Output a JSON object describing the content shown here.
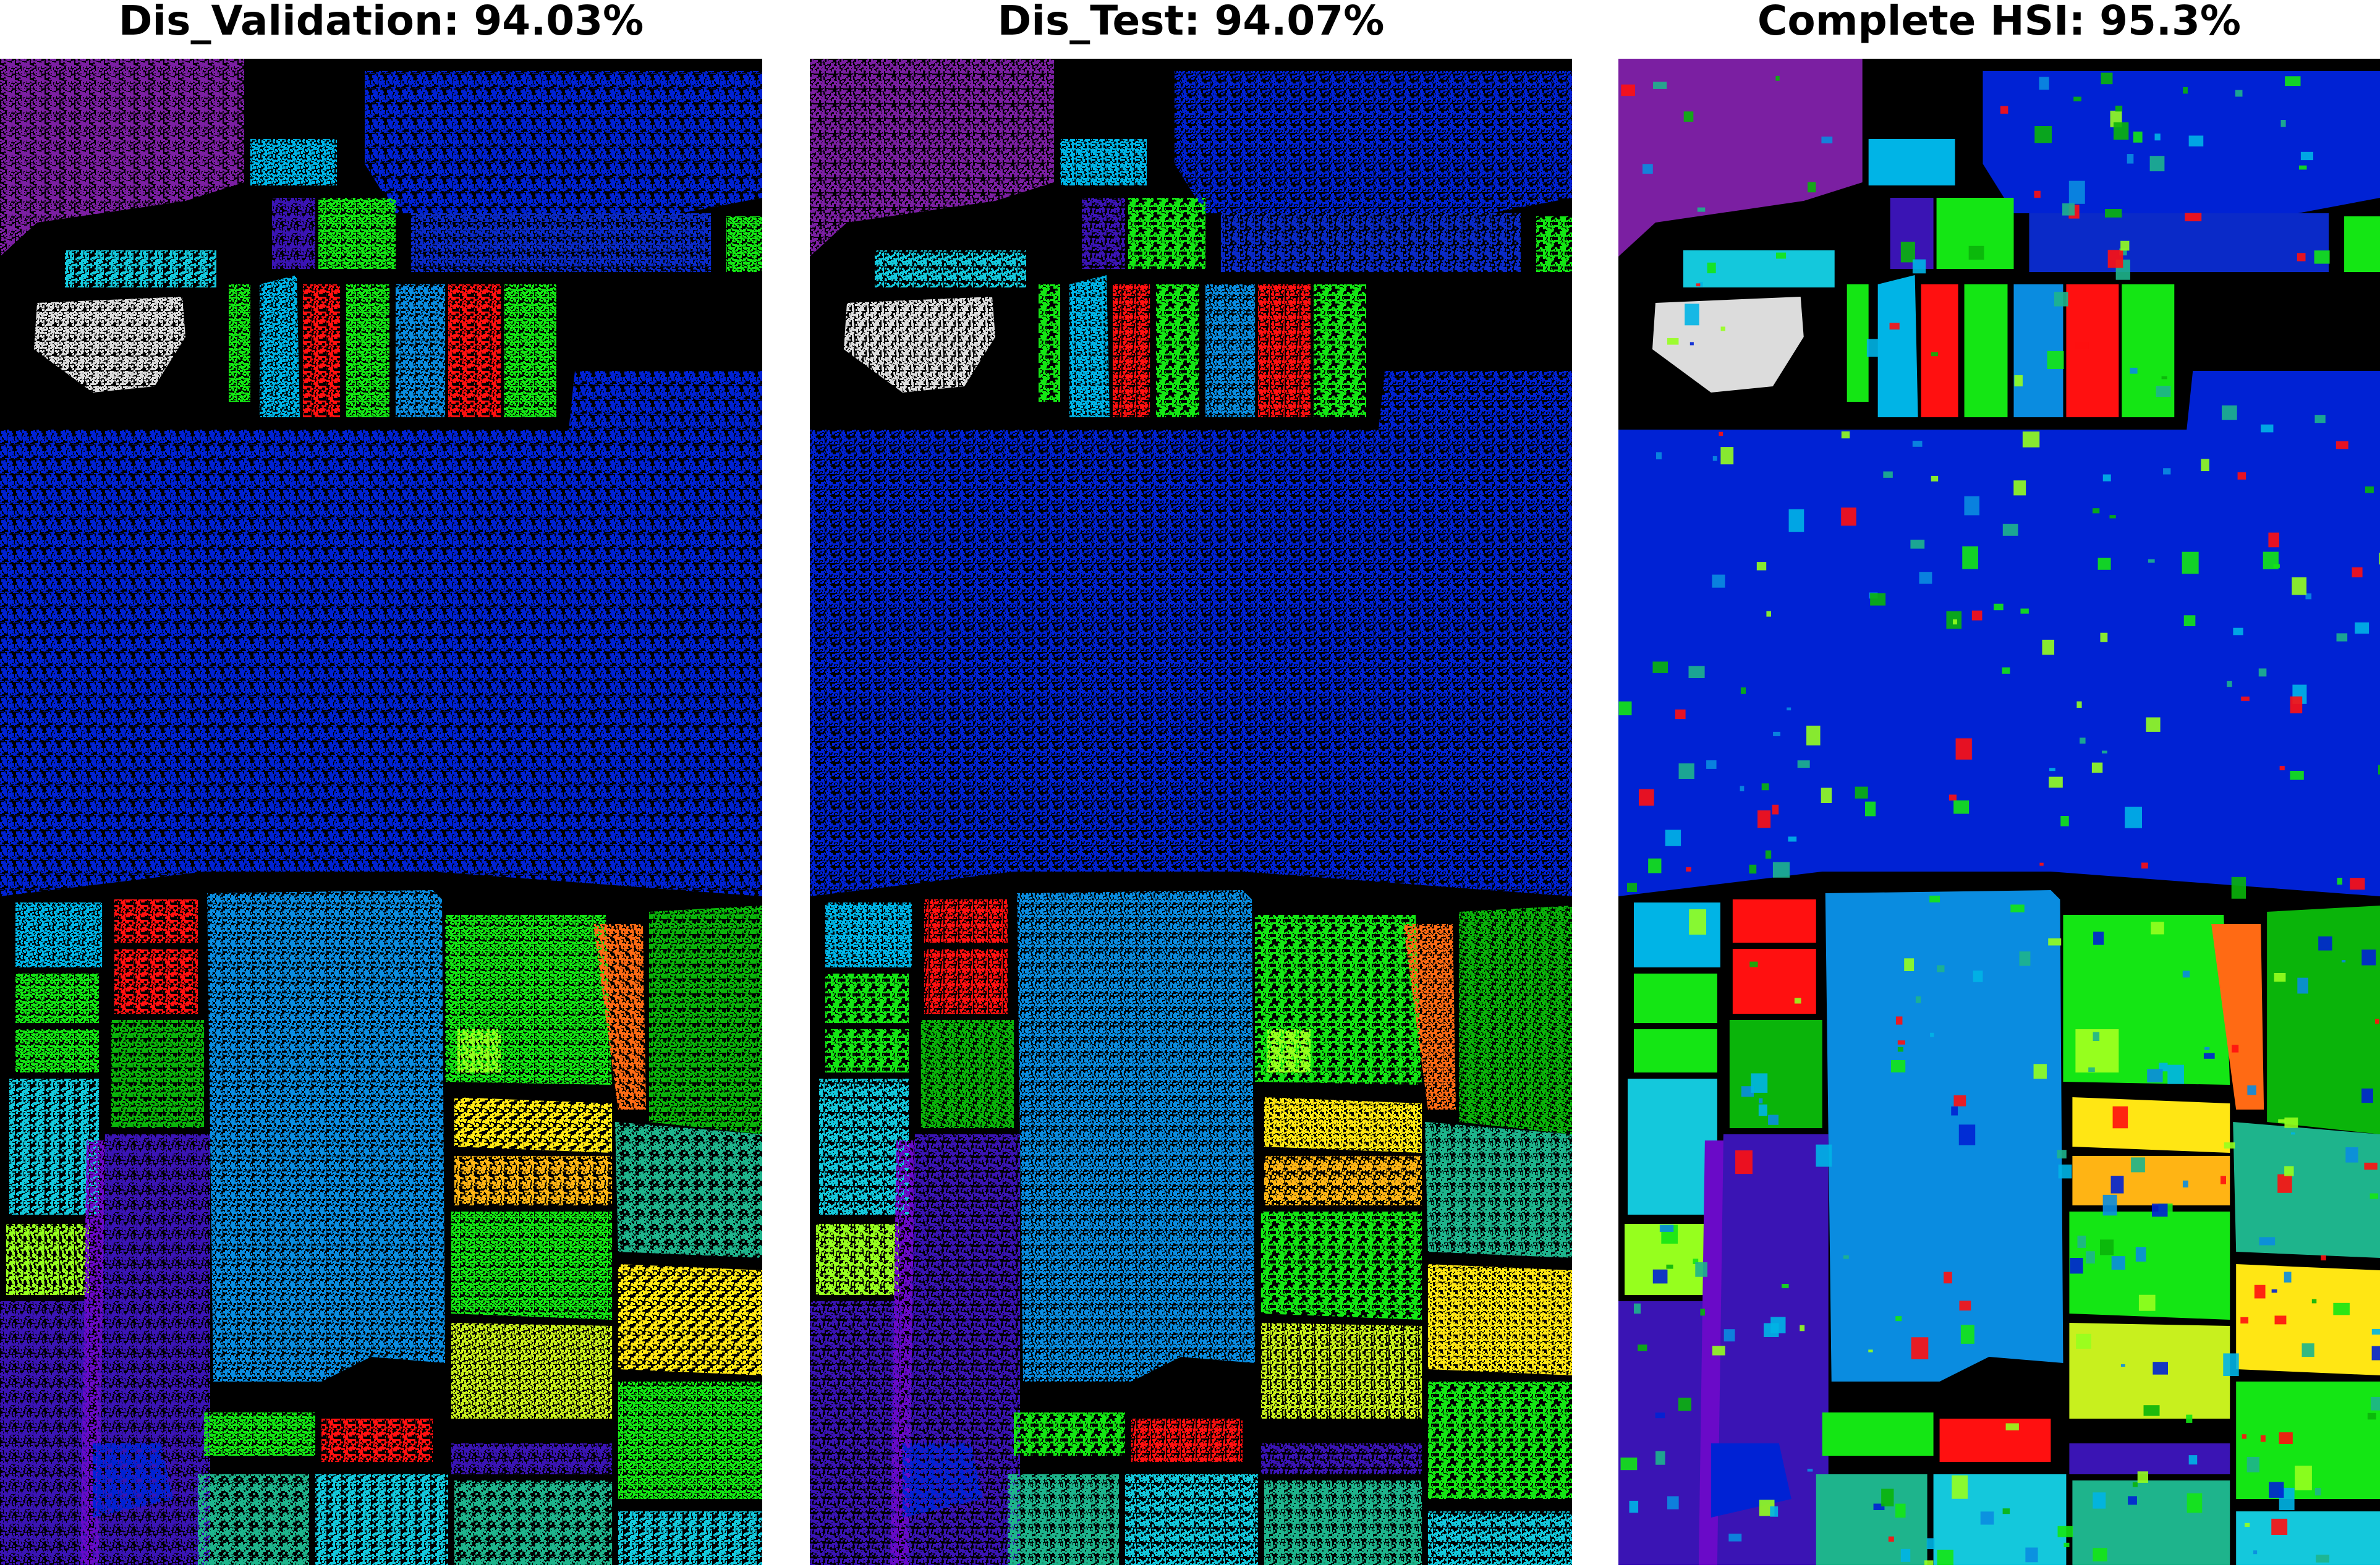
{
  "panels": [
    {
      "title": "Dis_Validation: 94.03%",
      "mode": "sparse"
    },
    {
      "title": "Dis_Test: 94.07%",
      "mode": "sparse"
    },
    {
      "title": "Complete HSI: 95.3%",
      "mode": "full"
    }
  ],
  "colors": {
    "background": "#000000",
    "purple": "#7B1FA2",
    "cyan": "#00B4E6",
    "deep_blue": "#0022D4",
    "navy_blue": "#0A2AC8",
    "sky_blue": "#0A8CE0",
    "blue_gray": "#1E5AE6",
    "white": "#DCDCDC",
    "red": "#FF1010",
    "bright_green": "#14E614",
    "dark_green": "#0AB40A",
    "lime": "#96FF1E",
    "yellow_green": "#C8F01E",
    "orange": "#FF6A14",
    "yellow": "#FFE614",
    "amber": "#FFB414",
    "teal": "#1EB48C",
    "indigo": "#3A14B4",
    "violet": "#6A0AC8",
    "light_cyan": "#14C8DC"
  }
}
